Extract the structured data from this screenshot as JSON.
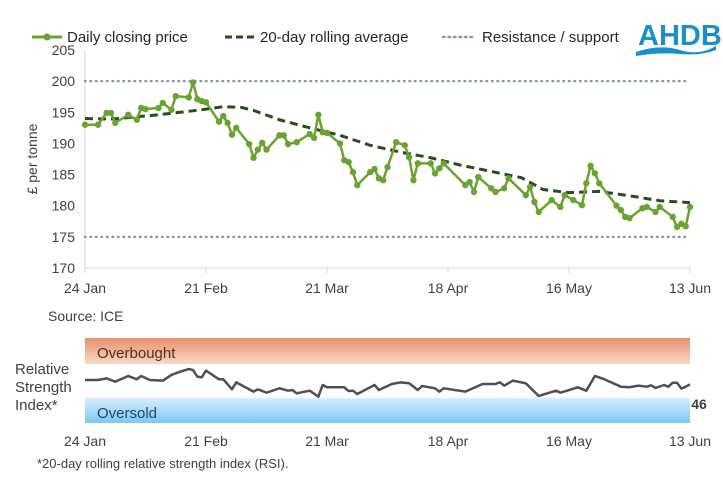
{
  "logo": {
    "text": "AHDB",
    "color": "#1a8fd0"
  },
  "source": "Source: ICE",
  "footnote": "*20-day rolling relative strength index (RSI).",
  "chart_data": [
    {
      "type": "line",
      "ylabel": "£ per tonne",
      "ylim": [
        170,
        205
      ],
      "yticks": [
        "170",
        "175",
        "180",
        "185",
        "190",
        "195",
        "200",
        "205"
      ],
      "xlim": [
        "24 Jan",
        "13 Jun"
      ],
      "xticks": [
        "24 Jan",
        "21 Feb",
        "21 Mar",
        "18 Apr",
        "16 May",
        "13 Jun"
      ],
      "grid": false,
      "legend": "top",
      "series": [
        {
          "name": "Daily closing price",
          "color": "#6aa332",
          "style": "solid-markers",
          "points": [
            [
              "24 Jan",
              193.0
            ],
            [
              "27 Jan",
              193.0
            ],
            [
              "29 Jan",
              194.9
            ],
            [
              "30 Jan",
              194.9
            ],
            [
              "31 Jan",
              193.3
            ],
            [
              "3 Feb",
              194.6
            ],
            [
              "5 Feb",
              193.8
            ],
            [
              "6 Feb",
              195.7
            ],
            [
              "7 Feb",
              195.5
            ],
            [
              "10 Feb",
              195.7
            ],
            [
              "11 Feb",
              196.5
            ],
            [
              "13 Feb",
              195.4
            ],
            [
              "14 Feb",
              197.6
            ],
            [
              "17 Feb",
              197.4
            ],
            [
              "18 Feb",
              199.8
            ],
            [
              "19 Feb",
              197.1
            ],
            [
              "20 Feb",
              196.8
            ],
            [
              "21 Feb",
              196.6
            ],
            [
              "24 Feb",
              193.5
            ],
            [
              "25 Feb",
              194.4
            ],
            [
              "26 Feb",
              193.3
            ],
            [
              "27 Feb",
              191.4
            ],
            [
              "28 Feb",
              192.5
            ],
            [
              "3 Mar",
              189.9
            ],
            [
              "4 Mar",
              187.7
            ],
            [
              "5 Mar",
              189.0
            ],
            [
              "6 Mar",
              190.1
            ],
            [
              "7 Mar",
              189.0
            ],
            [
              "10 Mar",
              191.3
            ],
            [
              "11 Mar",
              191.3
            ],
            [
              "12 Mar",
              189.9
            ],
            [
              "14 Mar",
              190.2
            ],
            [
              "17 Mar",
              191.5
            ],
            [
              "18 Mar",
              190.9
            ],
            [
              "19 Mar",
              194.6
            ],
            [
              "20 Mar",
              191.8
            ],
            [
              "21 Mar",
              191.7
            ],
            [
              "24 Mar",
              190.0
            ],
            [
              "25 Mar",
              187.3
            ],
            [
              "26 Mar",
              187.0
            ],
            [
              "27 Mar",
              185.4
            ],
            [
              "28 Mar",
              183.3
            ],
            [
              "31 Mar",
              185.4
            ],
            [
              "1 Apr",
              185.9
            ],
            [
              "2 Apr",
              184.4
            ],
            [
              "3 Apr",
              184.1
            ],
            [
              "4 Apr",
              186.2
            ],
            [
              "6 Apr",
              190.2
            ],
            [
              "8 Apr",
              189.7
            ],
            [
              "9 Apr",
              187.8
            ],
            [
              "10 Apr",
              184.1
            ],
            [
              "11 Apr",
              186.8
            ],
            [
              "14 Apr",
              186.8
            ],
            [
              "15 Apr",
              185.2
            ],
            [
              "16 Apr",
              186.0
            ],
            [
              "17 Apr",
              186.8
            ],
            [
              "22 Apr",
              183.3
            ],
            [
              "23 Apr",
              183.8
            ],
            [
              "24 Apr",
              182.2
            ],
            [
              "25 Apr",
              184.6
            ],
            [
              "28 Apr",
              182.8
            ],
            [
              "29 Apr",
              182.2
            ],
            [
              "1 May",
              182.8
            ],
            [
              "2 May",
              184.4
            ],
            [
              "6 May",
              181.7
            ],
            [
              "7 May",
              183.0
            ],
            [
              "8 May",
              180.6
            ],
            [
              "9 May",
              179.0
            ],
            [
              "12 May",
              180.9
            ],
            [
              "14 May",
              179.8
            ],
            [
              "15 May",
              181.7
            ],
            [
              "17 May",
              180.9
            ],
            [
              "19 May",
              180.1
            ],
            [
              "20 May",
              183.6
            ],
            [
              "21 May",
              186.4
            ],
            [
              "22 May",
              185.2
            ],
            [
              "23 May",
              183.6
            ],
            [
              "27 May",
              180.0
            ],
            [
              "28 May",
              179.3
            ],
            [
              "29 May",
              178.2
            ],
            [
              "30 May",
              178.0
            ],
            [
              "2 Jun",
              179.6
            ],
            [
              "3 Jun",
              179.8
            ],
            [
              "5 Jun",
              179.0
            ],
            [
              "6 Jun",
              179.8
            ],
            [
              "9 Jun",
              178.2
            ],
            [
              "10 Jun",
              176.6
            ],
            [
              "11 Jun",
              177.1
            ],
            [
              "12 Jun",
              176.7
            ],
            [
              "13 Jun",
              179.8
            ]
          ]
        },
        {
          "name": "20-day rolling average",
          "color": "#2d4a1e",
          "style": "dashed",
          "points": [
            [
              "24 Jan",
              194.0
            ],
            [
              "30 Jan",
              193.9
            ],
            [
              "10 Feb",
              194.6
            ],
            [
              "20 Feb",
              195.4
            ],
            [
              "25 Feb",
              195.9
            ],
            [
              "1 Mar",
              195.8
            ],
            [
              "4 Mar",
              195.3
            ],
            [
              "10 Mar",
              193.8
            ],
            [
              "17 Mar",
              192.5
            ],
            [
              "24 Mar",
              191.3
            ],
            [
              "31 Mar",
              189.7
            ],
            [
              "7 Apr",
              188.6
            ],
            [
              "14 Apr",
              187.7
            ],
            [
              "21 Apr",
              186.5
            ],
            [
              "28 Apr",
              185.5
            ],
            [
              "5 May",
              184.5
            ],
            [
              "10 May",
              182.6
            ],
            [
              "16 May",
              182.1
            ],
            [
              "23 May",
              182.3
            ],
            [
              "30 May",
              181.6
            ],
            [
              "6 Jun",
              180.8
            ],
            [
              "13 Jun",
              180.5
            ]
          ]
        },
        {
          "name": "Resistance / support",
          "color": "#8497b0",
          "style": "dotted",
          "levels": [
            200,
            175
          ]
        }
      ]
    },
    {
      "type": "line",
      "ylabel": "Relative Strength Index*",
      "xticks": [
        "24 Jan",
        "21 Feb",
        "21 Mar",
        "18 Apr",
        "16 May",
        "13 Jun"
      ],
      "bands": [
        {
          "label": "Overbought",
          "range": [
            70,
            100
          ],
          "color_top": "#e8906c",
          "color_bottom": "#f8d8c8"
        },
        {
          "label": "Oversold",
          "range": [
            0,
            30
          ],
          "color_top": "#d6effc",
          "color_bottom": "#7cc8f0"
        }
      ],
      "last_value_label": "46",
      "series": [
        {
          "color": "#505050",
          "points": [
            [
              "24 Jan",
              51.2
            ],
            [
              "27 Jan",
              51.2
            ],
            [
              "29 Jan",
              53.1
            ],
            [
              "31 Jan",
              49.2
            ],
            [
              "3 Feb",
              55.9
            ],
            [
              "5 Feb",
              52.0
            ],
            [
              "6 Feb",
              55.9
            ],
            [
              "8 Feb",
              51.2
            ],
            [
              "11 Feb",
              50.4
            ],
            [
              "13 Feb",
              57.1
            ],
            [
              "15 Feb",
              61.0
            ],
            [
              "17 Feb",
              64.1
            ],
            [
              "18 Feb",
              62.9
            ],
            [
              "19 Feb",
              55.1
            ],
            [
              "20 Feb",
              54.3
            ],
            [
              "21 Feb",
              62.2
            ],
            [
              "24 Feb",
              52.0
            ],
            [
              "25 Feb",
              52.0
            ],
            [
              "27 Feb",
              40.2
            ],
            [
              "28 Feb",
              48.4
            ],
            [
              "4 Mar",
              37.5
            ],
            [
              "5 Mar",
              40.2
            ],
            [
              "7 Mar",
              36.3
            ],
            [
              "10 Mar",
              41.4
            ],
            [
              "12 Mar",
              38.6
            ],
            [
              "13 Mar",
              39.4
            ],
            [
              "14 Mar",
              35.5
            ],
            [
              "17 Mar",
              38.6
            ],
            [
              "19 Mar",
              31.6
            ],
            [
              "20 Mar",
              45.3
            ],
            [
              "21 Mar",
              42.6
            ],
            [
              "25 Mar",
              42.6
            ],
            [
              "26 Mar",
              38.2
            ],
            [
              "27 Mar",
              38.6
            ],
            [
              "28 Mar",
              34.7
            ],
            [
              "1 Apr",
              45.3
            ],
            [
              "2 Apr",
              39.4
            ],
            [
              "5 Apr",
              46.5
            ],
            [
              "7 Apr",
              48.4
            ],
            [
              "9 Apr",
              47.3
            ],
            [
              "11 Apr",
              39.4
            ],
            [
              "12 Apr",
              44.1
            ],
            [
              "15 Apr",
              41.4
            ],
            [
              "16 Apr",
              37.5
            ],
            [
              "17 Apr",
              41.4
            ],
            [
              "22 Apr",
              37.5
            ],
            [
              "26 Apr",
              46.5
            ],
            [
              "29 Apr",
              46.5
            ],
            [
              "30 Apr",
              48.4
            ],
            [
              "1 May",
              44.5
            ],
            [
              "3 May",
              50.4
            ],
            [
              "6 May",
              47.3
            ],
            [
              "9 May",
              32.4
            ],
            [
              "13 May",
              38.6
            ],
            [
              "14 May",
              36.3
            ],
            [
              "16 May",
              39.4
            ],
            [
              "18 May",
              42.6
            ],
            [
              "20 May",
              38.6
            ],
            [
              "22 May",
              55.9
            ],
            [
              "24 May",
              52.4
            ],
            [
              "28 May",
              43.3
            ],
            [
              "30 May",
              42.6
            ],
            [
              "1 Jun",
              44.5
            ],
            [
              "3 Jun",
              43.3
            ],
            [
              "4 Jun",
              44.9
            ],
            [
              "5 Jun",
              41.8
            ],
            [
              "7 Jun",
              45.3
            ],
            [
              "8 Jun",
              43.3
            ],
            [
              "9 Jun",
              48.0
            ],
            [
              "10 Jun",
              48.0
            ],
            [
              "11 Jun",
              41.0
            ],
            [
              "12 Jun",
              43.3
            ],
            [
              "13 Jun",
              46
            ]
          ]
        }
      ]
    }
  ]
}
